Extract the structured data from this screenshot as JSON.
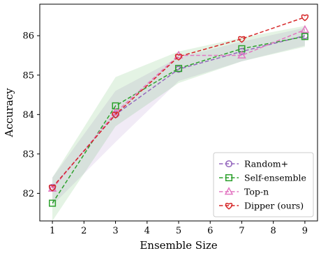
{
  "chart_data": {
    "type": "line",
    "title": "",
    "xlabel": "Ensemble Size",
    "ylabel": "Accuracy",
    "xlim": [
      0.6,
      9.4
    ],
    "ylim": [
      81.3,
      86.8
    ],
    "xticks": [
      1,
      2,
      3,
      4,
      5,
      6,
      7,
      8,
      9
    ],
    "yticks": [
      82,
      83,
      84,
      85,
      86
    ],
    "legend_position": "bottom-right",
    "grid": false,
    "x": [
      1,
      3,
      5,
      7,
      9
    ],
    "series": [
      {
        "name": "Random+",
        "values": [
          82.15,
          84.0,
          85.15,
          85.6,
          86.0
        ],
        "color": "#9467bd",
        "marker": "circle",
        "band": {
          "lower": [
            81.7,
            83.3,
            84.85,
            85.35,
            85.75
          ],
          "upper": [
            82.4,
            84.6,
            85.45,
            85.85,
            86.2
          ]
        }
      },
      {
        "name": "Self-ensemble",
        "values": [
          81.75,
          84.22,
          85.17,
          85.67,
          85.98
        ],
        "color": "#2ca02c",
        "marker": "square",
        "band": {
          "lower": [
            81.3,
            83.7,
            84.8,
            85.35,
            85.72
          ],
          "upper": [
            82.4,
            84.95,
            85.6,
            85.95,
            86.25
          ]
        }
      },
      {
        "name": "Top-n",
        "values": [
          82.12,
          84.05,
          85.5,
          85.5,
          86.15
        ],
        "color": "#e377c2",
        "marker": "triangle",
        "band": null
      },
      {
        "name": "Dipper (ours)",
        "values": [
          82.15,
          84.0,
          85.47,
          85.92,
          86.47
        ],
        "color": "#d62728",
        "marker": "heart",
        "band": null
      }
    ]
  }
}
